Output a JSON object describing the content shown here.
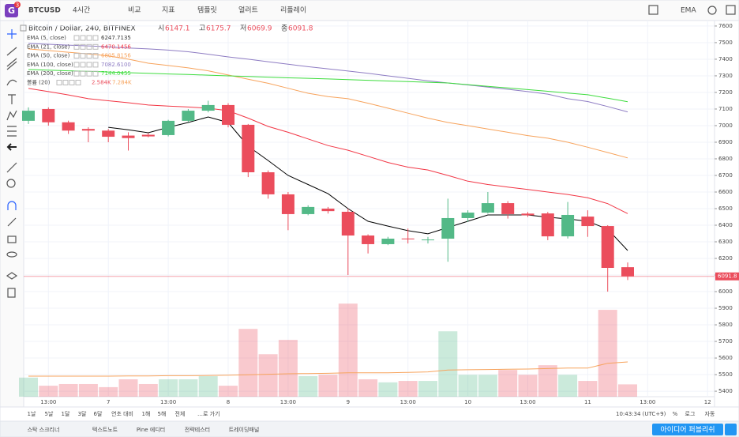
{
  "toolbar": {
    "symbol": "BTCUSD",
    "badge": "3",
    "interval": "4시간",
    "buttons": [
      "비교",
      "지표",
      "템플릿",
      "얼러트",
      "리플레이"
    ],
    "style": "EMA"
  },
  "chart_data": {
    "type": "candlestick",
    "title": "Bitcoin / Dollar, 240, BITFINEX",
    "ohlc_labels": [
      "시",
      "고",
      "저",
      "종"
    ],
    "categories": [
      null,
      "13:00",
      null,
      null,
      "7",
      null,
      null,
      "13:00",
      null,
      null,
      "8",
      null,
      null,
      "13:00",
      null,
      null,
      "9",
      null,
      null,
      "13:00",
      null,
      null,
      "10",
      null,
      null,
      "13:00",
      null,
      null,
      "11",
      null,
      null,
      "13:00",
      null,
      null,
      "12"
    ],
    "open": [
      7029,
      7100,
      7020,
      6980,
      6970,
      6940,
      6945,
      6943,
      7029,
      7090,
      7124,
      7005,
      6719,
      6586,
      6467,
      6500,
      6481,
      6338,
      6286,
      6320,
      6310,
      6319,
      6443,
      6476,
      6533,
      6470,
      6471,
      6333,
      6452,
      6395,
      6147.1,
      null,
      null,
      null,
      null
    ],
    "high": [
      7110,
      7110,
      7030,
      6990,
      6980,
      6960,
      6955,
      7035,
      7100,
      7150,
      7135,
      7010,
      6730,
      6600,
      6520,
      6510,
      6500,
      6345,
      6330,
      6380,
      6330,
      6560,
      6490,
      6600,
      6545,
      6480,
      6480,
      6540,
      6490,
      6400,
      6175.7,
      null,
      null,
      null,
      null
    ],
    "low": [
      7010,
      7000,
      6950,
      6900,
      6900,
      6850,
      6930,
      6935,
      7020,
      7080,
      6990,
      6690,
      6560,
      6370,
      6460,
      6470,
      6100,
      6230,
      6280,
      6290,
      6290,
      6180,
      6420,
      6470,
      6440,
      6450,
      6310,
      6320,
      6330,
      6000,
      6069.9,
      null,
      null,
      null,
      null
    ],
    "close": [
      7090,
      7020,
      6970,
      6970,
      6933,
      6925,
      6935,
      7029,
      7090,
      7124,
      7005,
      6719,
      6586,
      6467,
      6510,
      6485,
      6338,
      6286,
      6319,
      6315,
      6314,
      6443,
      6476,
      6533,
      6467,
      6460,
      6333,
      6462,
      6395,
      6143,
      6091.8,
      null,
      null,
      null,
      null
    ],
    "up_color": "#53b987",
    "down_color": "#eb4d5c",
    "series": [
      {
        "name": "EMA (5, close)",
        "color": "#000000",
        "last": 6247.7135,
        "values": [
          null,
          null,
          null,
          null,
          6990,
          6975,
          6957,
          6990,
          7019,
          7052,
          7019,
          6876,
          6790,
          6700,
          6645,
          6590,
          6500,
          6424,
          6395,
          6367,
          6348,
          6386,
          6424,
          6462,
          6462,
          6462,
          6448,
          6438,
          6424,
          6376,
          6247.7135,
          null,
          null,
          null,
          null
        ]
      },
      {
        "name": "EMA (21, close)",
        "color": "#f23645",
        "last": 6470.1456,
        "values": [
          7224,
          7205,
          7185,
          7162,
          7150,
          7138,
          7124,
          7118,
          7112,
          7105,
          7090,
          7045,
          6995,
          6960,
          6920,
          6880,
          6852,
          6815,
          6778,
          6750,
          6733,
          6700,
          6665,
          6645,
          6630,
          6615,
          6600,
          6585,
          6565,
          6530,
          6470.1456,
          null,
          null,
          null,
          null
        ]
      },
      {
        "name": "EMA (50, close)",
        "color": "#f7a35c",
        "last": 6805.8156,
        "values": [
          7462,
          7452,
          7442,
          7432,
          7420,
          7400,
          7376,
          7362,
          7348,
          7330,
          7305,
          7280,
          7255,
          7225,
          7195,
          7175,
          7162,
          7135,
          7105,
          7075,
          7045,
          7019,
          7000,
          6980,
          6960,
          6940,
          6924,
          6900,
          6870,
          6838,
          6805.8156,
          null,
          null,
          null,
          null
        ]
      },
      {
        "name": "EMA (100, close)",
        "color": "#8e7cc3",
        "last": {
          "value": 7082.61,
          "label": "7082.6100"
        },
        "values": [
          7495,
          7490,
          7485,
          7480,
          7475,
          7468,
          7462,
          7455,
          7445,
          7430,
          7414,
          7400,
          7385,
          7370,
          7355,
          7342,
          7329,
          7315,
          7300,
          7285,
          7270,
          7257,
          7245,
          7232,
          7219,
          7205,
          7190,
          7162,
          7145,
          7115,
          7082.61,
          null,
          null,
          null,
          null
        ]
      },
      {
        "name": "EMA (200, close)",
        "color": "#3ddc3d",
        "last": 7144.0455,
        "values": [
          7338,
          7334,
          7330,
          7327,
          7323,
          7319,
          7315,
          7311,
          7308,
          7304,
          7300,
          7296,
          7292,
          7288,
          7285,
          7281,
          7277,
          7273,
          7269,
          7265,
          7261,
          7257,
          7247,
          7237,
          7227,
          7217,
          7207,
          7196,
          7186,
          7165,
          7144.0455,
          null,
          null,
          null,
          null
        ]
      }
    ],
    "volume": {
      "name": "볼륨 (20)",
      "last_label": "2.584K",
      "ma_label": "7.284K",
      "ma_color": "#f7a35c",
      "ylim": [
        0,
        78800
      ],
      "values": [
        4000,
        2300,
        2650,
        2650,
        2000,
        3650,
        2650,
        3650,
        3650,
        4300,
        2300,
        14200,
        8900,
        11900,
        4300,
        4600,
        19500,
        3650,
        3000,
        3300,
        3300,
        13700,
        4600,
        4600,
        5600,
        4600,
        6600,
        4600,
        3300,
        18200,
        2584,
        null,
        null,
        null,
        null
      ],
      "ma_values": [
        4300,
        4300,
        4300,
        4300,
        4300,
        4350,
        4350,
        4400,
        4400,
        4450,
        4500,
        4600,
        4700,
        4800,
        4850,
        4900,
        5000,
        5000,
        5000,
        5100,
        5200,
        5600,
        5650,
        5700,
        5750,
        5800,
        5900,
        6000,
        6000,
        7000,
        7284,
        null,
        null,
        null,
        null
      ]
    },
    "ylim": [
      5367,
      7633
    ],
    "yticks": [
      5400,
      5500,
      5600,
      5700,
      5800,
      5900,
      6000,
      6100,
      6200,
      6300,
      6400,
      6500,
      6600,
      6700,
      6800,
      6900,
      7000,
      7100,
      7200,
      7300,
      7400,
      7500,
      7600
    ],
    "grid": true
  },
  "bottom_bar": {
    "ranges": [
      "1날",
      "5날",
      "1달",
      "3달",
      "6달",
      "연초 대비",
      "1해",
      "5해",
      "전체"
    ],
    "goto": "…로 가기",
    "time": "10:43:34 (UTC+9)",
    "scale_options": [
      "%",
      "로그",
      "자동"
    ]
  },
  "tabs": {
    "items": [
      "스탁 스크리너",
      "텍스트노트",
      "Pine 에디터",
      "전략테스터",
      "트레이딩패널"
    ],
    "publish": "아이디어 퍼블리쉬"
  }
}
